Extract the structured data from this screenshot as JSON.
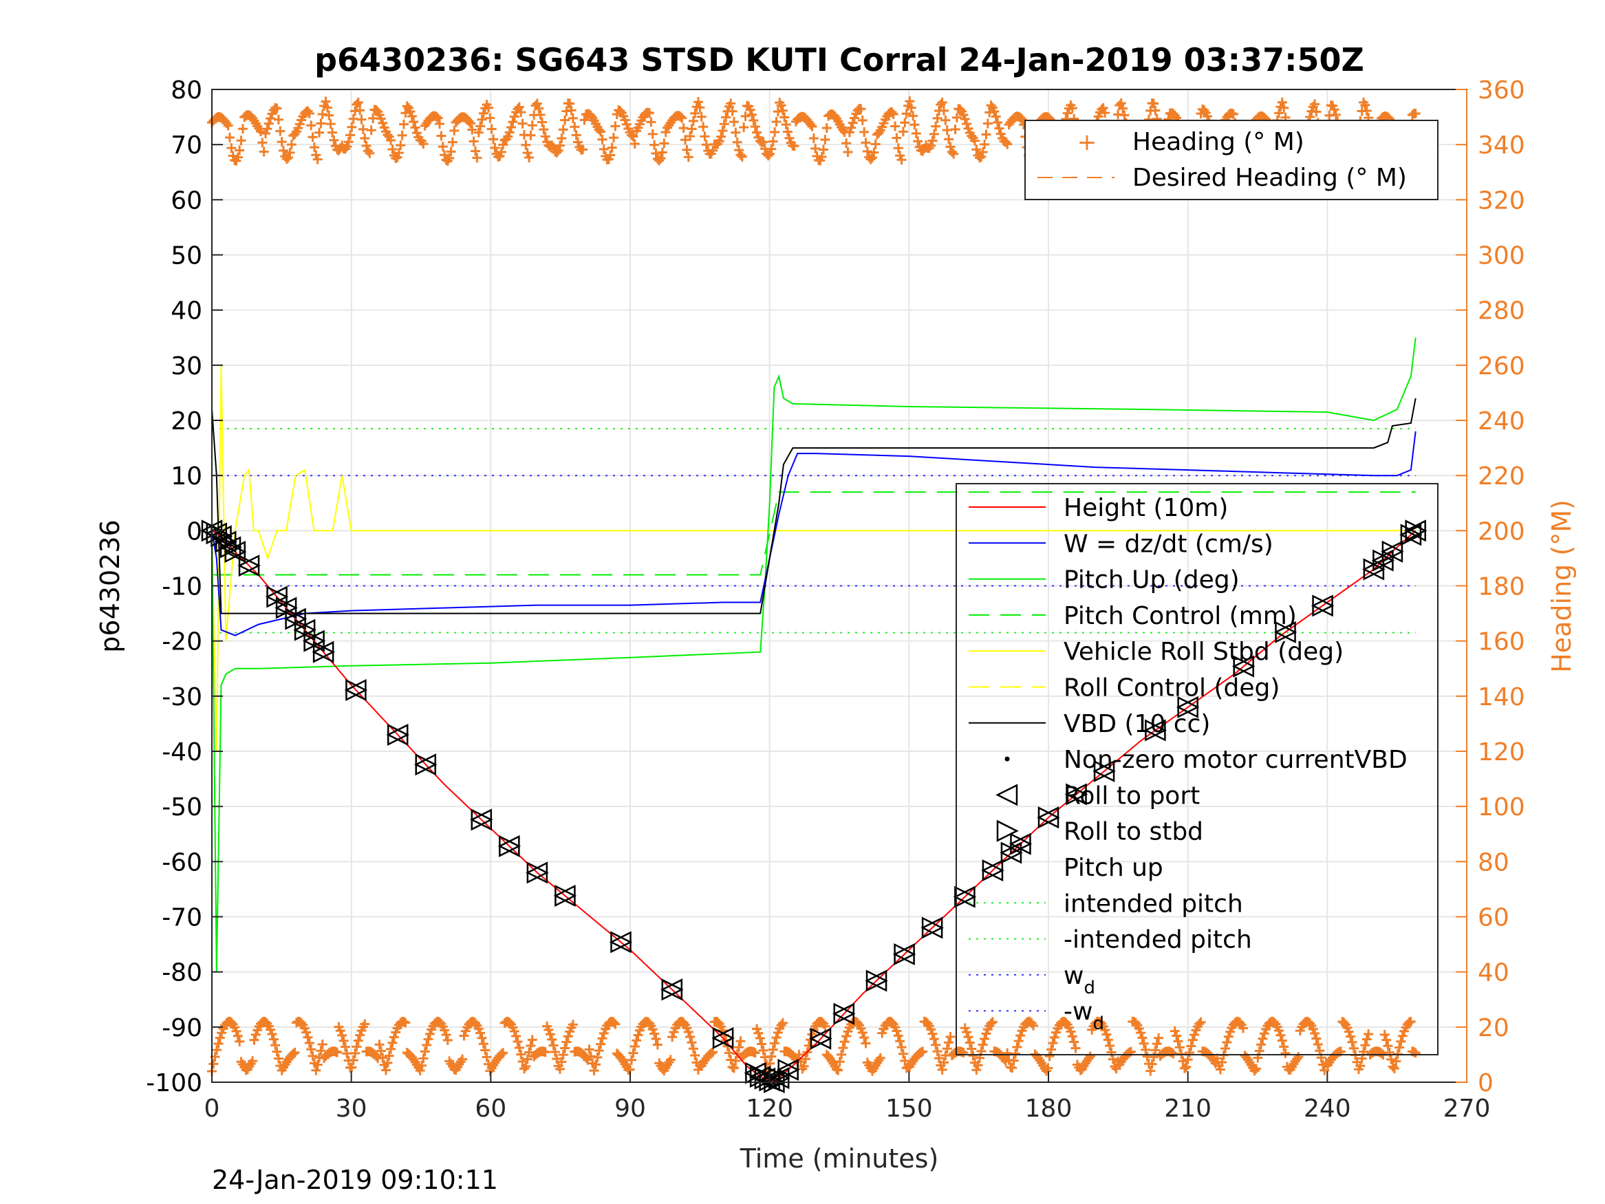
{
  "chart_data": {
    "type": "line",
    "title": "p6430236: SG643 STSD KUTI Corral 24-Jan-2019 03:37:50Z",
    "xlabel": "Time (minutes)",
    "ylabel": "p6430236",
    "y2label": "Heading (°M)",
    "footer": "24-Jan-2019 09:10:11",
    "xlim": [
      0,
      270
    ],
    "ylim": [
      -100,
      80
    ],
    "y2lim": [
      0,
      360
    ],
    "x_ticks": [
      "0",
      "30",
      "60",
      "90",
      "120",
      "150",
      "180",
      "210",
      "240",
      "270"
    ],
    "y_ticks": [
      "80",
      "70",
      "60",
      "50",
      "40",
      "30",
      "20",
      "10",
      "0",
      "-10",
      "-20",
      "-30",
      "-40",
      "-50",
      "-60",
      "-70",
      "-80",
      "-90",
      "-100"
    ],
    "y2_ticks": [
      "360",
      "340",
      "320",
      "300",
      "280",
      "260",
      "240",
      "220",
      "200",
      "180",
      "160",
      "140",
      "120",
      "100",
      "80",
      "60",
      "40",
      "20",
      "0"
    ],
    "grid": true,
    "colors": {
      "height": "#ff0000",
      "w": "#0000ff",
      "pitch": "#00ee00",
      "roll": "#ffff00",
      "vbd": "#000000",
      "heading": "#f07f28",
      "intended": "#22ee22",
      "wd": "#3030ff",
      "axis2": "#f07f28"
    },
    "legend_heading": {
      "placement": "top-right",
      "entries": [
        "Heading (° M)",
        "Desired Heading (° M)"
      ]
    },
    "legend_main": {
      "placement": "right",
      "entries": [
        "Height (10m)",
        "W = dz/dt (cm/s)",
        "Pitch Up (deg)",
        "Pitch Control (mm)",
        "Vehicle Roll Stbd (deg)",
        "Roll Control (deg)",
        "VBD (10 cc)",
        "Non-zero motor currentVBD",
        "Roll to port",
        "Roll to stbd",
        "Pitch up",
        "intended pitch",
        "-intended pitch",
        "w",
        "-w"
      ],
      "subscript": "d"
    },
    "series": [
      {
        "name": "Height (10m)",
        "x": [
          0,
          2,
          4,
          10,
          20,
          30,
          40,
          50,
          60,
          70,
          80,
          90,
          100,
          110,
          115,
          118,
          121,
          125,
          130,
          140,
          150,
          160,
          170,
          180,
          190,
          200,
          210,
          220,
          230,
          240,
          250,
          255,
          259
        ],
        "y": [
          0,
          -1,
          -3,
          -8,
          -18,
          -28,
          -37,
          -46,
          -54,
          -62,
          -69,
          -76,
          -84,
          -92,
          -97,
          -99,
          -100,
          -97,
          -93,
          -84,
          -76,
          -68,
          -60,
          -52,
          -45,
          -38,
          -32,
          -26,
          -19,
          -13,
          -7,
          -3,
          0
        ]
      },
      {
        "name": "W = dz/dt (cm/s)",
        "x": [
          0,
          1,
          2,
          5,
          10,
          20,
          30,
          50,
          70,
          90,
          110,
          117,
          118,
          120,
          122,
          124,
          126,
          130,
          150,
          170,
          190,
          210,
          230,
          250,
          255,
          258,
          259
        ],
        "y": [
          0,
          -5,
          -18,
          -19,
          -17,
          -15,
          -14.5,
          -14,
          -13.5,
          -13.5,
          -13,
          -13,
          -13,
          -5,
          3,
          10,
          14,
          14,
          13.5,
          12.5,
          11.5,
          11,
          10.5,
          10,
          10,
          11,
          18
        ]
      },
      {
        "name": "Pitch Up (deg)",
        "x": [
          0,
          1,
          2,
          3,
          5,
          10,
          30,
          60,
          90,
          118,
          119,
          120,
          121,
          122,
          123,
          125,
          150,
          200,
          240,
          250,
          255,
          258,
          259
        ],
        "y": [
          0,
          -80,
          -28,
          -26,
          -25,
          -25,
          -24.5,
          -24,
          -23,
          -22,
          -10,
          5,
          26,
          28,
          24,
          23,
          22.5,
          22,
          21.5,
          20,
          22,
          28,
          35
        ]
      },
      {
        "name": "Pitch Control (mm)",
        "x": [
          0,
          118,
          122,
          259
        ],
        "y": [
          -8,
          -8,
          7,
          7
        ]
      },
      {
        "name": "Vehicle Roll Stbd (deg)",
        "x": [
          0,
          1,
          2,
          3,
          5,
          7,
          8,
          9,
          10,
          12,
          14,
          15,
          16,
          18,
          20,
          22,
          24,
          26,
          28,
          30,
          120,
          259
        ],
        "y": [
          0,
          -40,
          30,
          -20,
          0,
          10,
          11,
          0,
          0,
          -5,
          0,
          0,
          0,
          10,
          11,
          0,
          0,
          0,
          10,
          0,
          0,
          0
        ]
      },
      {
        "name": "VBD (10 cc)",
        "x": [
          0,
          1,
          2,
          117,
          118,
          120,
          122,
          123,
          125,
          250,
          253,
          254,
          258,
          259
        ],
        "y": [
          22,
          10,
          -15,
          -15,
          -15,
          -5,
          5,
          12,
          15,
          15,
          16,
          19,
          19.5,
          24
        ]
      },
      {
        "name": "intended pitch",
        "x": [
          0,
          259
        ],
        "y": [
          18.5,
          18.5
        ]
      },
      {
        "name": "-intended pitch",
        "x": [
          0,
          259
        ],
        "y": [
          -18.5,
          -18.5
        ]
      },
      {
        "name": "w",
        "x": [
          0,
          259
        ],
        "y": [
          10,
          10
        ]
      },
      {
        "name": "-w",
        "x": [
          0,
          259
        ],
        "y": [
          -10,
          -10
        ]
      }
    ],
    "roll_markers_x": [
      0,
      1,
      2,
      3,
      4,
      5,
      8,
      14,
      16,
      18,
      20,
      22,
      24,
      31,
      40,
      46,
      58,
      64,
      70,
      76,
      88,
      99,
      110,
      117,
      118,
      119,
      120,
      121,
      122,
      124,
      131,
      136,
      143,
      149,
      155,
      162,
      168,
      172,
      174,
      180,
      186,
      192,
      203,
      210,
      222,
      231,
      239,
      250,
      252,
      254,
      258,
      259
    ]
  }
}
